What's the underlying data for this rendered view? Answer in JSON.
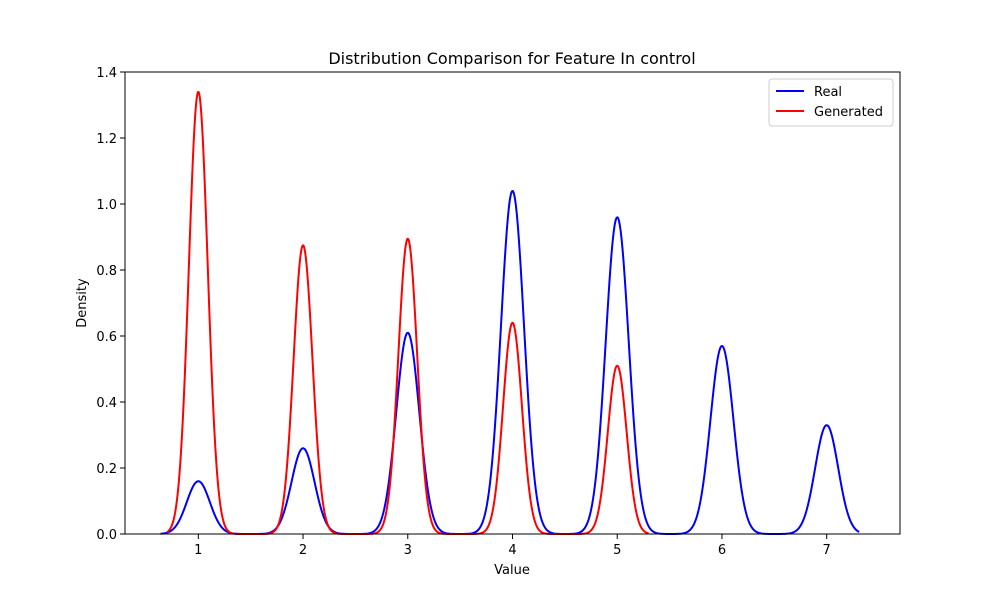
{
  "chart_data": {
    "type": "line",
    "title": "Distribution Comparison for Feature In control",
    "xlabel": "Value",
    "ylabel": "Density",
    "xlim": [
      0.3,
      7.7
    ],
    "ylim": [
      0,
      1.4
    ],
    "xticks": [
      1,
      2,
      3,
      4,
      5,
      6,
      7
    ],
    "xtick_labels": [
      "1",
      "2",
      "3",
      "4",
      "5",
      "6",
      "7"
    ],
    "yticks": [
      0,
      0.2,
      0.4,
      0.6,
      0.8,
      1.0,
      1.2,
      1.4
    ],
    "ytick_labels": [
      "0.0",
      "0.2",
      "0.4",
      "0.6",
      "0.8",
      "1.0",
      "1.2",
      "1.4"
    ],
    "grid": false,
    "legend_position": "top-right",
    "series": [
      {
        "name": "Real",
        "color": "#0000ff",
        "x_range": [
          0.64,
          7.31
        ],
        "sigma": 0.11,
        "peaks": [
          {
            "x": 1,
            "density": 0.16
          },
          {
            "x": 2,
            "density": 0.26
          },
          {
            "x": 3,
            "density": 0.61
          },
          {
            "x": 4,
            "density": 1.04
          },
          {
            "x": 5,
            "density": 0.96
          },
          {
            "x": 6,
            "density": 0.57
          },
          {
            "x": 7,
            "density": 0.33
          }
        ]
      },
      {
        "name": "Generated",
        "color": "#ff0000",
        "x_range": [
          0.7,
          5.3
        ],
        "sigma": 0.09,
        "peaks": [
          {
            "x": 1,
            "density": 1.34
          },
          {
            "x": 2,
            "density": 0.875
          },
          {
            "x": 3,
            "density": 0.895
          },
          {
            "x": 4,
            "density": 0.64
          },
          {
            "x": 5,
            "density": 0.51
          }
        ]
      }
    ]
  }
}
